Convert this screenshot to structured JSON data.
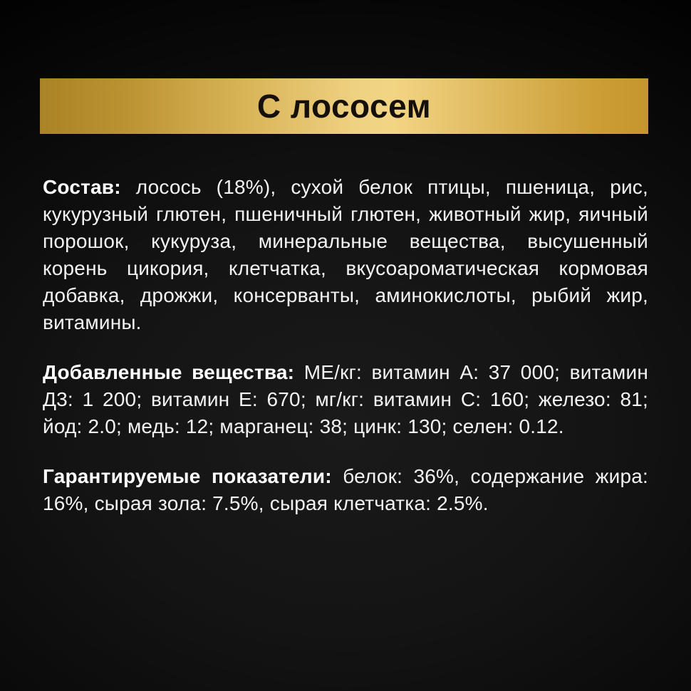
{
  "banner": {
    "title": "С лососем",
    "gradient_colors": [
      "#aa8326",
      "#f2d584",
      "#c5962e"
    ],
    "text_color": "#16100a"
  },
  "page": {
    "background_color": "#0e0e0e",
    "text_color": "#f2f2f2"
  },
  "sections": [
    {
      "heading": "Состав:",
      "body": "лосось (18%), сухой белок птицы, пшеница, рис, кукурузный глютен, пшеничный глютен, животный жир, яичный порошок, кукуруза, минеральные вещества, высушенный корень цикория, клетчатка, вкусоароматическая кормовая добавка, дрожжи, консерванты, аминокислоты, рыбий жир, витамины."
    },
    {
      "heading": "Добавленные вещества:",
      "body": "МЕ/кг: витамин А: 37 000; витамин Д3: 1 200; витамин Е: 670; мг/кг: витамин С: 160; железо: 81; йод: 2.0; медь: 12; марганец: 38; цинк: 130; селен: 0.12."
    },
    {
      "heading": "Гарантируемые показатели:",
      "body": "белок: 36%, содержание жира: 16%, сырая зола: 7.5%, сырая клетчатка: 2.5%."
    }
  ]
}
